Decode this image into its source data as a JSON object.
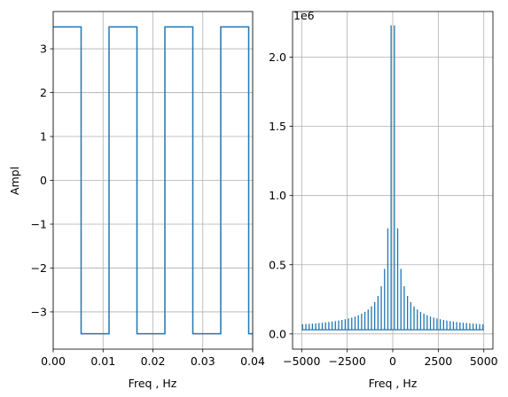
{
  "chart_data": [
    {
      "type": "line",
      "title": "",
      "xlabel": "Freq , Hz",
      "ylabel": "Ampl",
      "xlim": [
        0.0,
        0.04
      ],
      "ylim": [
        -3.85,
        3.85
      ],
      "grid": true,
      "x_ticks": [
        0.0,
        0.01,
        0.02,
        0.03,
        0.04
      ],
      "x_tick_labels": [
        "0.00",
        "0.01",
        "0.02",
        "0.03",
        "0.04"
      ],
      "y_ticks": [
        -3,
        -2,
        -1,
        0,
        1,
        2,
        3
      ],
      "y_tick_labels": [
        "−3",
        "−2",
        "−1",
        "0",
        "1",
        "2",
        "3"
      ],
      "color": "#1f77b4",
      "series": [
        {
          "x": [
            0.0,
            0.0056,
            0.0056,
            0.0112,
            0.0112,
            0.0168,
            0.0168,
            0.0224,
            0.0224,
            0.028,
            0.028,
            0.0336,
            0.0336,
            0.0392,
            0.0392,
            0.04
          ],
          "y": [
            3.5,
            3.5,
            -3.5,
            -3.5,
            3.5,
            3.5,
            -3.5,
            -3.5,
            3.5,
            3.5,
            -3.5,
            -3.5,
            3.5,
            3.5,
            -3.5,
            -3.5
          ]
        }
      ]
    },
    {
      "type": "line",
      "title": "",
      "xlabel": "Freq , Hz",
      "ylabel": "",
      "offset_text": "1e6",
      "xlim": [
        -5500,
        5500
      ],
      "ylim": [
        -0.11,
        2.33
      ],
      "grid": true,
      "x_ticks": [
        -5000,
        -2500,
        0,
        2500,
        5000
      ],
      "x_tick_labels": [
        "−5000",
        "−2500",
        "0",
        "2500",
        "5000"
      ],
      "y_ticks": [
        0.0,
        0.5,
        1.0,
        1.5,
        2.0
      ],
      "y_tick_labels": [
        "0.0",
        "0.5",
        "1.0",
        "1.5",
        "2.0"
      ],
      "color": "#1f77b4",
      "spectrum": {
        "fundamental_hz": 90,
        "peak_value": 2.23,
        "floor": 0.03,
        "x_range": [
          -5000,
          5000
        ]
      }
    }
  ]
}
